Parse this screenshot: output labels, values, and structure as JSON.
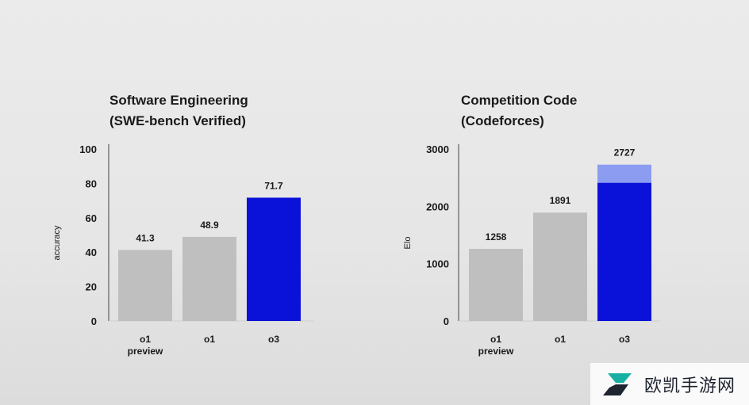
{
  "chart_data": [
    {
      "type": "bar",
      "title": [
        "Software Engineering",
        "(SWE-bench Verified)"
      ],
      "ylabel": "accuracy",
      "ylim": [
        0,
        100
      ],
      "yticks": [
        0,
        20,
        40,
        60,
        80,
        100
      ],
      "categories": [
        [
          "o1",
          "preview"
        ],
        [
          "o1"
        ],
        [
          "o3"
        ]
      ],
      "values": [
        41.3,
        48.9,
        71.7
      ],
      "value_labels": [
        "41.3",
        "48.9",
        "71.7"
      ],
      "colors": [
        "#bfbfbf",
        "#bfbfbf",
        "#0a12d9"
      ]
    },
    {
      "type": "bar",
      "title": [
        "Competition Code",
        "(Codeforces)"
      ],
      "ylabel": "Elo",
      "ylim": [
        0,
        3000
      ],
      "yticks": [
        0,
        1000,
        2000,
        3000
      ],
      "categories": [
        [
          "o1",
          "preview"
        ],
        [
          "o1"
        ],
        [
          "o3"
        ]
      ],
      "values": [
        1258,
        1891,
        2727
      ],
      "value_labels": [
        "1258",
        "1891",
        "2727"
      ],
      "solid_portion_o3": 2410,
      "colors": [
        "#bfbfbf",
        "#bfbfbf",
        "#0a12d9"
      ],
      "light_color": "#8c9cf0"
    }
  ],
  "watermark": {
    "text": "欧凯手游网"
  }
}
